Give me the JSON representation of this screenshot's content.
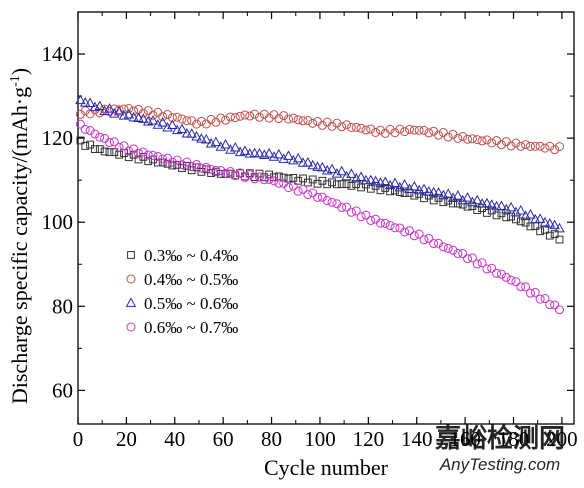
{
  "chart_data": {
    "type": "scatter",
    "xlabel": "Cycle number",
    "ylabel": "Discharge specific capacity/(mAh·g",
    "ylabel_sup": "-1",
    "ylabel_close": ")",
    "xlim": [
      0,
      205
    ],
    "ylim": [
      52,
      150
    ],
    "x_ticks": [
      0,
      20,
      40,
      60,
      80,
      100,
      120,
      140,
      160,
      180,
      200
    ],
    "y_ticks": [
      60,
      80,
      100,
      120,
      140
    ],
    "grid": false,
    "legend_position": "middle-left",
    "series": [
      {
        "name": "0.3‰ ~ 0.4‰",
        "marker": "square",
        "color": "#333333",
        "anchors": [
          [
            1,
            119
          ],
          [
            10,
            117
          ],
          [
            20,
            116
          ],
          [
            40,
            113.5
          ],
          [
            60,
            111.5
          ],
          [
            80,
            111
          ],
          [
            100,
            109.5
          ],
          [
            120,
            108.5
          ],
          [
            140,
            106.5
          ],
          [
            160,
            104
          ],
          [
            180,
            101
          ],
          [
            200,
            96
          ]
        ]
      },
      {
        "name": "0.4‰ ~ 0.5‰",
        "marker": "circle",
        "color": "#c0504d",
        "anchors": [
          [
            1,
            126
          ],
          [
            20,
            127
          ],
          [
            40,
            125
          ],
          [
            50,
            123.5
          ],
          [
            60,
            124.5
          ],
          [
            70,
            125.5
          ],
          [
            85,
            125
          ],
          [
            100,
            123.5
          ],
          [
            110,
            123
          ],
          [
            125,
            121.5
          ],
          [
            140,
            122
          ],
          [
            160,
            120
          ],
          [
            180,
            118.5
          ],
          [
            200,
            117.5
          ]
        ]
      },
      {
        "name": "0.5‰ ~ 0.6‰",
        "marker": "triangle",
        "color": "#2a2aa8",
        "anchors": [
          [
            1,
            129
          ],
          [
            10,
            127
          ],
          [
            20,
            125.5
          ],
          [
            40,
            122.5
          ],
          [
            55,
            119
          ],
          [
            70,
            116.5
          ],
          [
            80,
            116
          ],
          [
            90,
            115
          ],
          [
            100,
            113
          ],
          [
            120,
            110
          ],
          [
            140,
            108
          ],
          [
            160,
            105.5
          ],
          [
            180,
            103
          ],
          [
            200,
            98.5
          ]
        ]
      },
      {
        "name": "0.6‰ ~ 0.7‰",
        "marker": "circle",
        "color": "#cc33cc",
        "anchors": [
          [
            1,
            123
          ],
          [
            10,
            120
          ],
          [
            20,
            117.5
          ],
          [
            40,
            114.5
          ],
          [
            60,
            112
          ],
          [
            70,
            111
          ],
          [
            80,
            110
          ],
          [
            100,
            106
          ],
          [
            120,
            101
          ],
          [
            140,
            97
          ],
          [
            160,
            92
          ],
          [
            180,
            86
          ],
          [
            200,
            79
          ]
        ]
      }
    ]
  },
  "watermark": {
    "text_cn": "嘉峪检测网",
    "text_en": "AnyTesting.com",
    "color": "#c8c8c8"
  }
}
